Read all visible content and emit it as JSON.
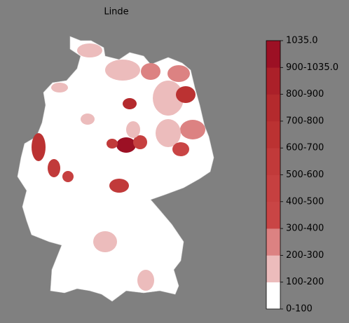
{
  "title": "Linde",
  "colorbar": {
    "labels": [
      "0-100",
      "100-200",
      "200-300",
      "300-400",
      "400-500",
      "500-600",
      "600-700",
      "700-800",
      "800-900",
      "900-1035.0",
      "1035.0"
    ],
    "colors": [
      "#ffffff",
      "#ecbcbc",
      "#dc8282",
      "#c94545",
      "#c64040",
      "#c13a3a",
      "#bb3232",
      "#b42a2d",
      "#ab2029",
      "#9c1024"
    ]
  }
}
